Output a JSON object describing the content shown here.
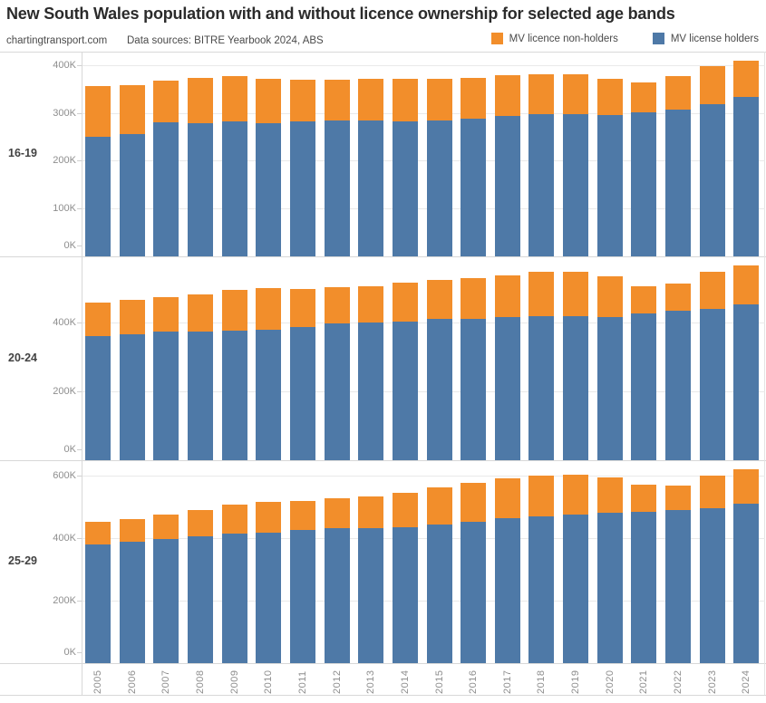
{
  "header": {
    "title": "New South Wales population with and without licence ownership for selected age bands",
    "credit": "chartingtransport.com",
    "sources": "Data sources: BITRE Yearbook 2024, ABS"
  },
  "legend": {
    "position": "top-right",
    "items": [
      {
        "label": "MV licence non-holders",
        "key": "non_holders",
        "color": "#F28E2B"
      },
      {
        "label": "MV license holders",
        "key": "holders",
        "color": "#4E79A7"
      }
    ]
  },
  "chart_data": {
    "type": "bar",
    "stacked": true,
    "grid": "on",
    "unit": "persons, values in thousands (K)",
    "x_label": "year",
    "x": [
      "2005",
      "2006",
      "2007",
      "2008",
      "2009",
      "2010",
      "2011",
      "2012",
      "2013",
      "2014",
      "2015",
      "2016",
      "2017",
      "2018",
      "2019",
      "2020",
      "2021",
      "2022",
      "2023",
      "2024"
    ],
    "colors": {
      "holders": "#4E79A7",
      "non_holders": "#F28E2B"
    },
    "panels": [
      {
        "age_band": "16-19",
        "ylim_thousands": [
          0,
          428
        ],
        "y_tick_labels": [
          "0K",
          "100K",
          "200K",
          "300K",
          "400K"
        ],
        "y_tick_values": [
          0,
          100,
          200,
          300,
          400
        ],
        "series": [
          {
            "name": "MV license holders",
            "key": "holders",
            "values_thousands": [
              250,
              256,
              280,
              278,
              282,
              280,
              283,
              284,
              285,
              283,
              285,
              288,
              292,
              296,
              297,
              297,
              301,
              306,
              318,
              333
            ]
          },
          {
            "name": "MV licence non-holders",
            "key": "non_holders",
            "values_thousands": [
              106,
              102,
              87,
              95,
              94,
              92,
              87,
              86,
              87,
              89,
              87,
              86,
              86,
              84,
              83,
              75,
              62,
              71,
              80,
              76
            ]
          }
        ]
      },
      {
        "age_band": "20-24",
        "ylim_thousands": [
          0,
          592
        ],
        "y_tick_labels": [
          "0K",
          "200K",
          "400K"
        ],
        "y_tick_values": [
          0,
          200,
          400
        ],
        "series": [
          {
            "name": "MV license holders",
            "key": "holders",
            "values_thousands": [
              361,
              368,
              372,
              374,
              376,
              378,
              388,
              398,
              400,
              403,
              409,
              411,
              415,
              417,
              418,
              416,
              426,
              432,
              440,
              453
            ]
          },
          {
            "name": "MV licence non-holders",
            "key": "non_holders",
            "values_thousands": [
              97,
              99,
              101,
              108,
              119,
              122,
              110,
              105,
              106,
              112,
              114,
              119,
              122,
              130,
              130,
              118,
              79,
              80,
              108,
              113
            ]
          }
        ]
      },
      {
        "age_band": "25-29",
        "ylim_thousands": [
          0,
          650
        ],
        "y_tick_labels": [
          "0K",
          "200K",
          "400K",
          "600K"
        ],
        "y_tick_values": [
          0,
          200,
          400,
          600
        ],
        "series": [
          {
            "name": "MV license holders",
            "key": "holders",
            "values_thousands": [
              381,
              387,
              398,
              404,
              412,
              419,
              427,
              432,
              433,
              434,
              444,
              453,
              464,
              470,
              476,
              480,
              483,
              488,
              495,
              509
            ]
          },
          {
            "name": "MV licence non-holders",
            "key": "non_holders",
            "values_thousands": [
              72,
              73,
              77,
              85,
              94,
              98,
              93,
              96,
              100,
              111,
              119,
              124,
              128,
              130,
              127,
              114,
              87,
              79,
              104,
              111
            ]
          }
        ]
      }
    ]
  }
}
